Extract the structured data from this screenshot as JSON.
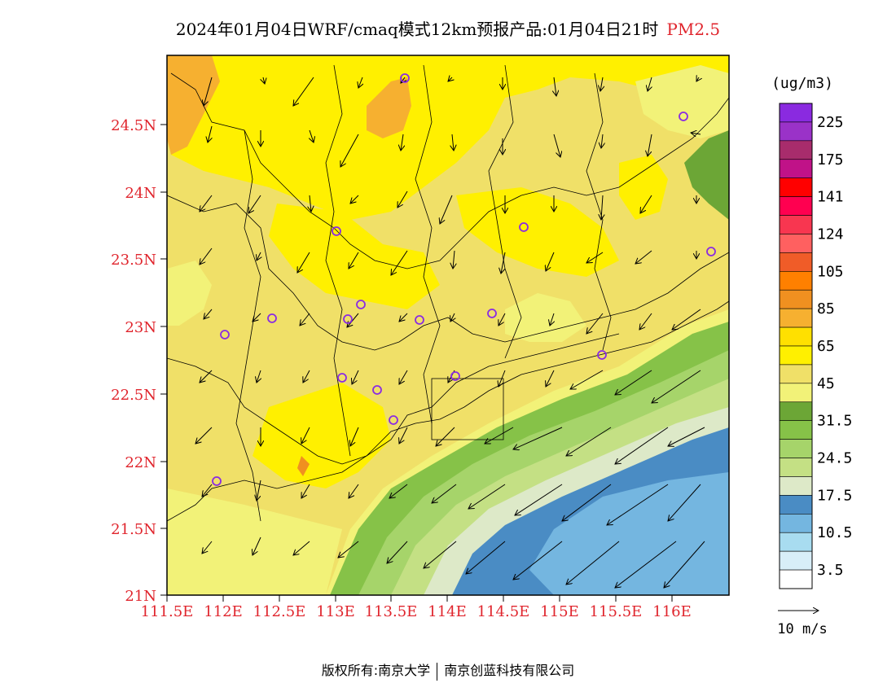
{
  "title": {
    "main": "2024年01月04日WRF/cmaq模式12km预报产品:01月04日21时",
    "pollutant": "PM2.5"
  },
  "axes": {
    "lat_labels": [
      "21N",
      "21.5N",
      "22N",
      "22.5N",
      "23N",
      "23.5N",
      "24N",
      "24.5N"
    ],
    "lon_labels": [
      "111.5E",
      "112E",
      "112.5E",
      "113E",
      "113.5E",
      "114E",
      "114.5E",
      "115E",
      "115.5E",
      "116E"
    ],
    "label_color": "#e0252d"
  },
  "legend": {
    "unit": "(ug/m3)",
    "colors": [
      "#ffffff",
      "#d8eef8",
      "#a8dcf0",
      "#74b6e0",
      "#4a8cc4",
      "#dde9c8",
      "#c4e084",
      "#a6d46a",
      "#86c248",
      "#6ca636",
      "#f2f278",
      "#f0e068",
      "#fff000",
      "#ffe000",
      "#f6b030",
      "#f09020",
      "#ff8000",
      "#f05c28",
      "#ff6060",
      "#f83650",
      "#ff0050",
      "#ff0000",
      "#c01288",
      "#a82c6c",
      "#9a32c8",
      "#8a2ae0"
    ],
    "labels": [
      "3.5",
      "10.5",
      "17.5",
      "24.5",
      "31.5",
      "45",
      "65",
      "85",
      "105",
      "124",
      "141",
      "175",
      "225"
    ]
  },
  "wind_scale": {
    "label": "10 m/s"
  },
  "site_color": "#8a2be2",
  "copyright": {
    "left": "版权所有:南京大学",
    "right": "南京创蓝科技有限公司"
  }
}
